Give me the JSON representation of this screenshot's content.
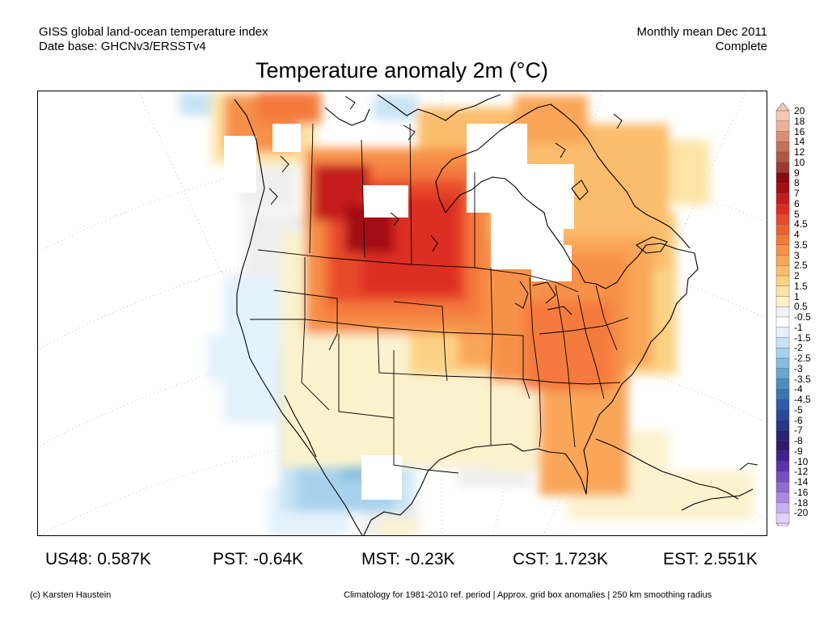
{
  "header": {
    "line1_left": "GISS global land-ocean temperature index",
    "line2_left": "Date base: GHCNv3/ERSSTv4",
    "line1_right": "Monthly mean Dec 2011",
    "line2_right": "Complete"
  },
  "title": "Temperature anomaly 2m (°C)",
  "legend": {
    "labels": [
      "20",
      "18",
      "16",
      "14",
      "12",
      "10",
      "9",
      "8",
      "7",
      "6",
      "5",
      "4.5",
      "4",
      "3.5",
      "3",
      "2.5",
      "2",
      "1.5",
      "1",
      "0.5",
      "-0.5",
      "-1",
      "-1.5",
      "-2",
      "-2.5",
      "-3",
      "-3.5",
      "-4",
      "-4.5",
      "-5",
      "-6",
      "-7",
      "-8",
      "-9",
      "-10",
      "-12",
      "-14",
      "-16",
      "-18",
      "-20"
    ],
    "colors": [
      "#f4c8b4",
      "#ecb09a",
      "#d98e76",
      "#c47158",
      "#b05846",
      "#9c3a32",
      "#8a0a12",
      "#a40d14",
      "#c41b1d",
      "#dc2d24",
      "#e8482c",
      "#ee6030",
      "#f47a3c",
      "#f7914a",
      "#f9a658",
      "#fbbd6c",
      "#fcd284",
      "#fde4a6",
      "#fbf2ce",
      "#f2f2f2",
      "#ffffff",
      "#e4f2fc",
      "#c8e4f4",
      "#a8d2ec",
      "#86bcdd",
      "#68a6cf",
      "#4c8cc0",
      "#3a74b4",
      "#2c5ca6",
      "#2a4898",
      "#2a3686",
      "#2a2276",
      "#2e1a6e",
      "#40228a",
      "#5a34a8",
      "#7450c0",
      "#8e6cd0",
      "#a88ae0",
      "#c6b0ee",
      "#e0d2f8"
    ]
  },
  "stats": {
    "us48": "US48: 0.587K",
    "pst": "PST: -0.64K",
    "mst": "MST: -0.23K",
    "cst": "CST: 1.723K",
    "est": "EST: 2.551K"
  },
  "footer": {
    "left": "(c) Karsten Haustein",
    "right": "Climatology for 1981-2010 ref. period | Approx. grid box anomalies | 250 km smoothing radius"
  }
}
